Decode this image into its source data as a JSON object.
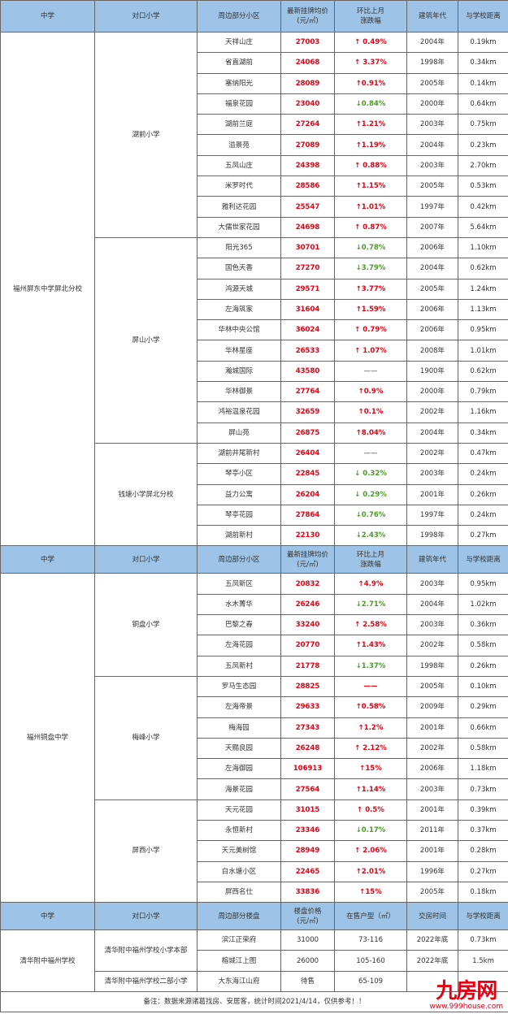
{
  "colors": {
    "header_bg": "#9dc3e6",
    "up": "#e60012",
    "down": "#4e9a2a",
    "price": "#e60012"
  },
  "headers_a": [
    "中学",
    "对口小学",
    "周边部分小区",
    "最新挂牌均价\n(元/㎡)",
    "环比上月\n涨跌幅",
    "建筑年代",
    "与学校距离"
  ],
  "headers_b": [
    "中学",
    "对口小学",
    "周边部分楼盘",
    "楼盘价格\n(元/㎡)",
    "在售户型（㎡）",
    "交房时间",
    "与学校距离"
  ],
  "sections": [
    {
      "school": "福州屏东中学屏北分校",
      "groups": [
        {
          "primary": "湖前小学",
          "rows": [
            [
              "天祥山庄",
              "27003",
              "↑ 0.49%",
              "up",
              "2004年",
              "0.19km"
            ],
            [
              "省直湖前",
              "24068",
              "↑ 3.37%",
              "up",
              "1998年",
              "0.34km"
            ],
            [
              "塞纳阳光",
              "28089",
              "↑0.91%",
              "up",
              "2005年",
              "0.14km"
            ],
            [
              "福泉花园",
              "23040",
              "↓0.84%",
              "down",
              "2000年",
              "0.64km"
            ],
            [
              "湖前兰庭",
              "27264",
              "↑1.21%",
              "up",
              "2003年",
              "0.75km"
            ],
            [
              "溢景苑",
              "27089",
              "↑1.19%",
              "up",
              "2004年",
              "0.23km"
            ],
            [
              "五凤山庄",
              "24398",
              "↑ 0.88%",
              "up",
              "2003年",
              "2.70km"
            ],
            [
              "米罗时代",
              "28586",
              "↑1.15%",
              "up",
              "2005年",
              "0.53km"
            ],
            [
              "雅利达花园",
              "25547",
              "↑1.01%",
              "up",
              "1997年",
              "0.42km"
            ],
            [
              "大儒世家花园",
              "24698",
              "↑ 0.87%",
              "up",
              "2007年",
              "5.64km"
            ]
          ]
        },
        {
          "primary": "屏山小学",
          "rows": [
            [
              "阳光365",
              "30701",
              "↓0.78%",
              "down",
              "2006年",
              "1.10km"
            ],
            [
              "国色天香",
              "27270",
              "↓3.79%",
              "down",
              "2004年",
              "0.62km"
            ],
            [
              "鸿源天城",
              "29571",
              "↑3.77%",
              "up",
              "2005年",
              "1.24km"
            ],
            [
              "左海筑家",
              "31604",
              "↑1.59%",
              "up",
              "2006年",
              "1.13km"
            ],
            [
              "华林中央公馆",
              "36024",
              "↑ 0.79%",
              "up",
              "2006年",
              "0.95km"
            ],
            [
              "华林星座",
              "26533",
              "↑ 1.07%",
              "up",
              "2008年",
              "1.01km"
            ],
            [
              "瀚城国际",
              "43580",
              "——",
              "none",
              "1900年",
              "0.62km"
            ],
            [
              "华林御景",
              "27764",
              "↑0.9%",
              "up",
              "2000年",
              "0.79km"
            ],
            [
              "鸿裕温泉花园",
              "32659",
              "↑0.1%",
              "up",
              "2002年",
              "1.16km"
            ],
            [
              "屏山苑",
              "26875",
              "↑8.04%",
              "up",
              "2004年",
              "0.34km"
            ]
          ]
        },
        {
          "primary": "钱塘小学屏北分校",
          "rows": [
            [
              "湖前井尾新村",
              "26404",
              "——",
              "none",
              "2002年",
              "0.47km"
            ],
            [
              "琴亭小区",
              "22845",
              "↓ 0.32%",
              "down",
              "2003年",
              "0.24km"
            ],
            [
              "益力公寓",
              "26204",
              "↓ 0.29%",
              "down",
              "2001年",
              "0.26km"
            ],
            [
              "琴亭花园",
              "27864",
              "↓0.76%",
              "down",
              "1997年",
              "0.24km"
            ],
            [
              "湖前新村",
              "22130",
              "↓2.43%",
              "down",
              "1998年",
              "0.27km"
            ]
          ]
        }
      ]
    },
    {
      "school": "福州铜盘中学",
      "groups": [
        {
          "primary": "铜盘小学",
          "rows": [
            [
              "五凤新区",
              "20832",
              "↑4.9%",
              "up",
              "2003年",
              "0.95km"
            ],
            [
              "水木菁华",
              "26246",
              "↓2.71%",
              "down",
              "2004年",
              "1.02km"
            ],
            [
              "巴黎之春",
              "33240",
              "↑ 2.58%",
              "up",
              "2003年",
              "0.36km"
            ],
            [
              "左海花园",
              "20770",
              "↑1.43%",
              "up",
              "2002年",
              "0.58km"
            ],
            [
              "五凤新村",
              "21778",
              "↓1.37%",
              "down",
              "1998年",
              "0.26km"
            ]
          ]
        },
        {
          "primary": "梅峰小学",
          "rows": [
            [
              "罗马生态园",
              "28825",
              "——",
              "up",
              "2005年",
              "0.10km"
            ],
            [
              "左海帝景",
              "29633",
              "↑0.58%",
              "up",
              "2009年",
              "0.29km"
            ],
            [
              "梅海园",
              "27343",
              "↑1.2%",
              "up",
              "2001年",
              "0.66km"
            ],
            [
              "天赐良园",
              "26248",
              "↑ 2.12%",
              "up",
              "2002年",
              "0.58km"
            ],
            [
              "左海御园",
              "106913",
              "↑15%",
              "up",
              "2006年",
              "1.18km"
            ],
            [
              "海景花园",
              "27564",
              "↑1.14%",
              "up",
              "2003年",
              "0.73km"
            ]
          ]
        },
        {
          "primary": "屏西小学",
          "rows": [
            [
              "天元花园",
              "31015",
              "↑ 0.5%",
              "up",
              "2001年",
              "0.39km"
            ],
            [
              "永恒新村",
              "23346",
              "↓0.17%",
              "down",
              "2011年",
              "0.37km"
            ],
            [
              "天元美树馆",
              "28949",
              "↑ 2.06%",
              "up",
              "2001年",
              "0.28km"
            ],
            [
              "白水塘小区",
              "22465",
              "↑2.01%",
              "up",
              "1996年",
              "0.27km"
            ],
            [
              "屏西名仕",
              "33836",
              "↑15%",
              "up",
              "2005年",
              "0.18km"
            ]
          ]
        }
      ]
    }
  ],
  "section_c": {
    "school": "清华附中福州学校",
    "groups": [
      {
        "primary": "清华附中福州学校小学本部",
        "rows": [
          [
            "滨江正荣府",
            "31000",
            "73-116",
            "2022年底",
            "0.73km"
          ],
          [
            "榕城江上图",
            "26000",
            "105-160",
            "2022年底",
            "1.5km"
          ]
        ]
      },
      {
        "primary": "清华附中福州学校二部小学",
        "rows": [
          [
            "大东海江山府",
            "待售",
            "65-109",
            "",
            ""
          ]
        ]
      }
    ]
  },
  "note": "备注：数据来源诸葛找房、安居客，统计时间2021/4/14，仅供参考！！",
  "watermark": {
    "logo": "九房网",
    "url": "www.999house.com"
  }
}
